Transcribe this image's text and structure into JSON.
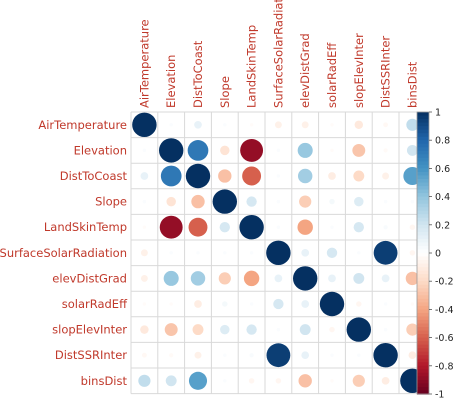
{
  "chart_data": {
    "type": "heatmap",
    "subtype": "correlation-circle-matrix",
    "variables": [
      "AirTemperature",
      "Elevation",
      "DistToCoast",
      "Slope",
      "LandSkinTemp",
      "SurfaceSolarRadiation",
      "elevDistGrad",
      "solarRadEff",
      "slopElevInter",
      "DistSSRInter",
      "binsDist"
    ],
    "matrix": [
      [
        1.0,
        0.02,
        0.1,
        0.02,
        -0.02,
        -0.08,
        -0.08,
        -0.02,
        -0.12,
        -0.04,
        0.25
      ],
      [
        0.02,
        1.0,
        0.72,
        -0.15,
        -0.88,
        0.02,
        0.38,
        -0.02,
        -0.28,
        -0.03,
        0.2
      ],
      [
        0.1,
        0.72,
        1.0,
        -0.3,
        -0.6,
        0.02,
        0.35,
        -0.1,
        -0.2,
        -0.08,
        0.55
      ],
      [
        0.02,
        -0.15,
        -0.3,
        1.0,
        0.18,
        0.02,
        -0.25,
        0.05,
        0.15,
        0.02,
        0.02
      ],
      [
        -0.02,
        -0.88,
        -0.6,
        0.18,
        1.0,
        0.02,
        -0.4,
        0.02,
        0.18,
        0.03,
        -0.05
      ],
      [
        -0.08,
        0.02,
        0.02,
        0.02,
        0.02,
        1.0,
        0.1,
        0.18,
        0.02,
        0.95,
        -0.05
      ],
      [
        -0.08,
        0.38,
        0.35,
        -0.25,
        -0.4,
        0.1,
        1.0,
        0.1,
        0.2,
        0.1,
        -0.3
      ],
      [
        -0.02,
        -0.02,
        -0.1,
        0.05,
        0.02,
        0.18,
        0.1,
        1.0,
        -0.05,
        0.02,
        -0.02
      ],
      [
        -0.12,
        -0.28,
        -0.2,
        0.15,
        0.18,
        0.02,
        0.2,
        -0.05,
        1.0,
        0.02,
        -0.25
      ],
      [
        -0.04,
        -0.03,
        -0.08,
        0.02,
        0.03,
        0.95,
        0.1,
        0.02,
        0.02,
        1.0,
        -0.1
      ],
      [
        0.25,
        0.2,
        0.55,
        0.02,
        -0.05,
        -0.05,
        -0.3,
        -0.02,
        -0.25,
        -0.1,
        1.0
      ]
    ],
    "legend": {
      "placement": "right",
      "range": [
        -1,
        1
      ],
      "ticks": [
        "1",
        "0.8",
        "0.6",
        "0.4",
        "0.2",
        "0",
        "-0.2",
        "-0.4",
        "-0.6",
        "-0.8",
        "-1"
      ],
      "colors": {
        "negative": "#67001f",
        "neutral": "#ffffff",
        "positive": "#053061"
      }
    },
    "label_color": "#c0392b",
    "grid": true
  }
}
